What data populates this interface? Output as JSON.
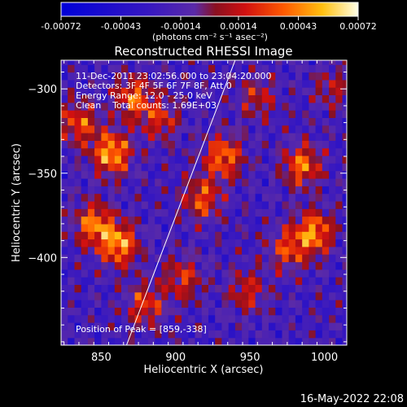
{
  "chart_data": {
    "type": "heatmap",
    "title": "Reconstructed RHESSI Image",
    "xlabel": "Heliocentric X (arcsec)",
    "ylabel": "Heliocentric Y (arcsec)",
    "xlim": [
      823,
      1015
    ],
    "ylim": [
      -452,
      -283
    ],
    "x_ticks": [
      850,
      900,
      950,
      1000
    ],
    "y_ticks": [
      -300,
      -350,
      -400
    ],
    "colorbar": {
      "label": "(photons cm⁻² s⁻¹ asec⁻²)",
      "range": [
        -0.00072,
        0.00072
      ],
      "ticks": [
        "-0.00072",
        "-0.00043",
        "-0.00014",
        "0.00014",
        "0.00043",
        "0.00072"
      ]
    },
    "annotations": [
      "11-Dec-2011 23:02:56.000 to 23:04:20.000",
      "Detectors: 3F 4F 5F 6F 7F 8F, Att 0",
      "Energy Range: 12.0 - 25.0 keV",
      "Clean    Total counts: 1.69E+03"
    ],
    "peak_label": "Position of Peak = [859,-338]",
    "limb_line": [
      [
        867,
        -452
      ],
      [
        940,
        -283
      ]
    ],
    "hot_spots": [
      {
        "x": 857,
        "y": -338,
        "v": 0.00072
      },
      {
        "x": 862,
        "y": -392,
        "v": 0.00068
      },
      {
        "x": 845,
        "y": -380,
        "v": 0.0006
      },
      {
        "x": 872,
        "y": -305,
        "v": 0.00055
      },
      {
        "x": 890,
        "y": -318,
        "v": 0.0004
      },
      {
        "x": 932,
        "y": -340,
        "v": 0.0006
      },
      {
        "x": 918,
        "y": -365,
        "v": 0.0005
      },
      {
        "x": 985,
        "y": -345,
        "v": 0.00058
      },
      {
        "x": 993,
        "y": -385,
        "v": 0.00065
      },
      {
        "x": 975,
        "y": -395,
        "v": 0.00045
      },
      {
        "x": 905,
        "y": -412,
        "v": 0.00042
      },
      {
        "x": 948,
        "y": -420,
        "v": 0.00038
      },
      {
        "x": 880,
        "y": -428,
        "v": 0.00046
      },
      {
        "x": 835,
        "y": -320,
        "v": 0.0005
      },
      {
        "x": 1005,
        "y": -300,
        "v": 0.0003
      },
      {
        "x": 955,
        "y": -305,
        "v": 0.00035
      }
    ]
  },
  "timestamp": "16-May-2022 22:08"
}
